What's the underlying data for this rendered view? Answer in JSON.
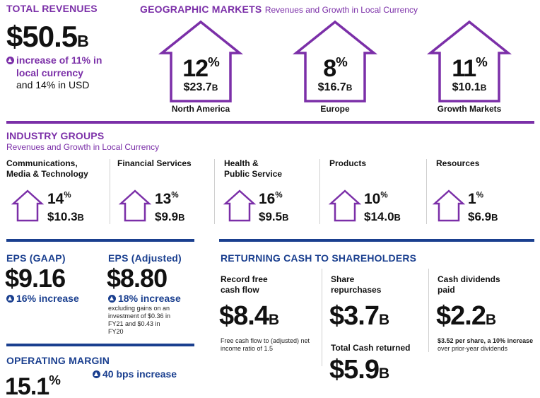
{
  "total_revenues": {
    "heading": "TOTAL REVENUES",
    "value": "$50.5",
    "value_suffix": "B",
    "increase_line1": "increase of 11% in",
    "increase_line2": "local currency",
    "usd_line": "and 14% in USD"
  },
  "geographic": {
    "heading": "GEOGRAPHIC MARKETS",
    "subheading": "Revenues and Growth in Local Currency",
    "markets": [
      {
        "pct": "12",
        "pct_sign": "%",
        "amount": "$23.7",
        "amount_suffix": "B",
        "name": "North America"
      },
      {
        "pct": "8",
        "pct_sign": "%",
        "amount": "$16.7",
        "amount_suffix": "B",
        "name": "Europe"
      },
      {
        "pct": "11",
        "pct_sign": "%",
        "amount": "$10.1",
        "amount_suffix": "B",
        "name": "Growth Markets"
      }
    ]
  },
  "industry": {
    "heading": "INDUSTRY GROUPS",
    "subheading": "Revenues and Growth in Local Currency",
    "groups": [
      {
        "name1": "Communications,",
        "name2": "Media & Technology",
        "pct": "14",
        "pct_sign": "%",
        "amount": "$10.3",
        "amount_suffix": "B"
      },
      {
        "name1": "Financial Services",
        "name2": "",
        "pct": "13",
        "pct_sign": "%",
        "amount": "$9.9",
        "amount_suffix": "B"
      },
      {
        "name1": "Health &",
        "name2": "Public Service",
        "pct": "16",
        "pct_sign": "%",
        "amount": "$9.5",
        "amount_suffix": "B"
      },
      {
        "name1": "Products",
        "name2": "",
        "pct": "10",
        "pct_sign": "%",
        "amount": "$14.0",
        "amount_suffix": "B"
      },
      {
        "name1": "Resources",
        "name2": "",
        "pct": "1",
        "pct_sign": "%",
        "amount": "$6.9",
        "amount_suffix": "B"
      }
    ]
  },
  "eps": {
    "gaap_heading": "EPS (GAAP)",
    "gaap_value": "$9.16",
    "gaap_increase": "16% increase",
    "adj_heading": "EPS (Adjusted)",
    "adj_value": "$8.80",
    "adj_increase": "18% increase",
    "adj_note1": "excluding gains on an",
    "adj_note2": "investment of $0.36 in",
    "adj_note3": "FY21 and $0.43 in",
    "adj_note4": "FY20"
  },
  "operating_margin": {
    "heading": "OPERATING MARGIN",
    "value": "15.1",
    "value_sign": "%",
    "increase": "40 bps increase"
  },
  "returning_cash": {
    "heading": "RETURNING CASH TO SHAREHOLDERS",
    "fcf_label1": "Record free",
    "fcf_label2": "cash flow",
    "fcf_value": "$8.4",
    "fcf_suffix": "B",
    "fcf_note1": "Free cash flow to (adjusted) net",
    "fcf_note2": "income ratio of 1.5",
    "rep_label1": "Share",
    "rep_label2": "repurchases",
    "rep_value": "$3.7",
    "rep_suffix": "B",
    "total_label": "Total Cash returned",
    "total_value": "$5.9",
    "total_suffix": "B",
    "div_label1": "Cash dividends",
    "div_label2": "paid",
    "div_value": "$2.2",
    "div_suffix": "B",
    "div_note1": "$3.52 per share, a 10% increase",
    "div_note2": "over prior-year dividends"
  }
}
